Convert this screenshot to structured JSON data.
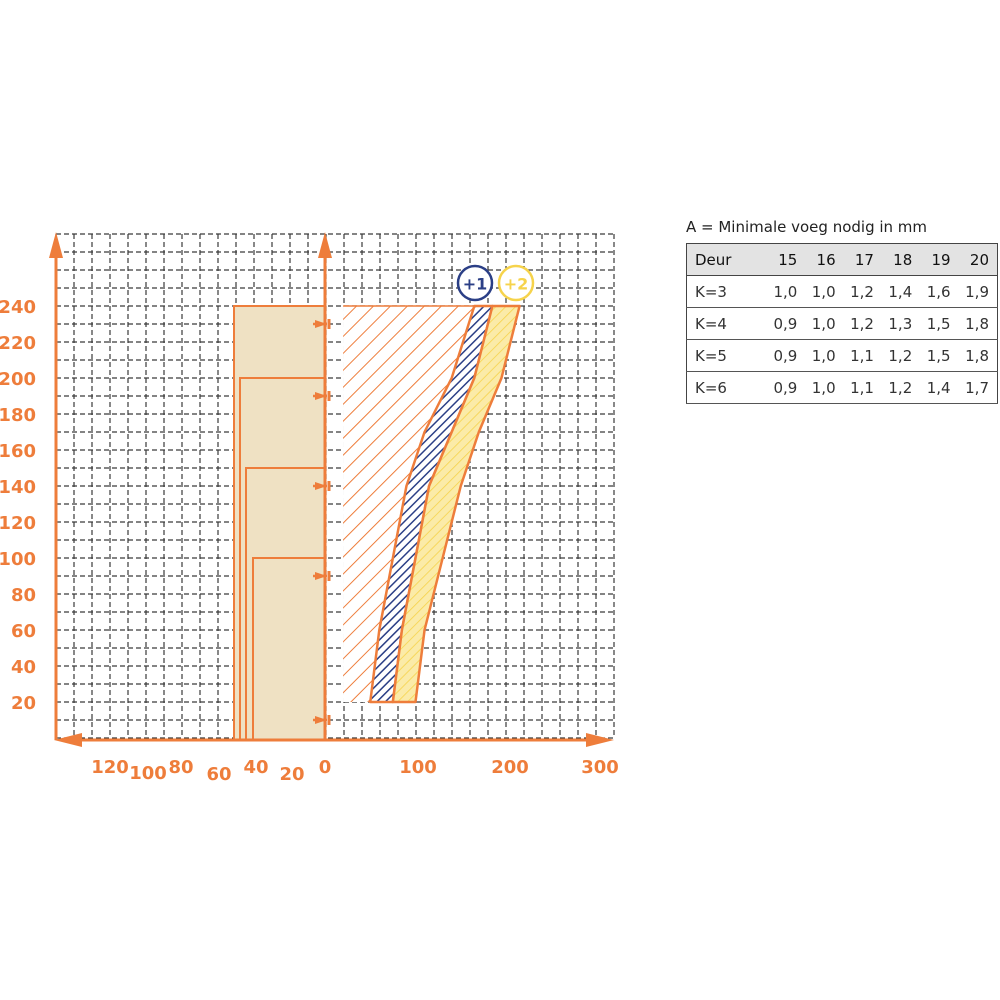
{
  "colors": {
    "orange": "#EE7D3B",
    "blue": "#2B3F86",
    "yellow": "#F6D34B",
    "beige": "#EFE1C3",
    "grid": "#3a3a3a"
  },
  "chart_data": {
    "type": "area",
    "y_axis": {
      "ticks": [
        "20",
        "40",
        "60",
        "80",
        "100",
        "120",
        "140",
        "160",
        "180",
        "200",
        "220",
        "240"
      ],
      "range": [
        0,
        270
      ]
    },
    "x_axis_left": {
      "ticks": [
        "120",
        "100",
        "80",
        "60",
        "40",
        "20",
        "0"
      ],
      "range": [
        0,
        150
      ]
    },
    "x_axis_right": {
      "ticks": [
        "100",
        "200",
        "300"
      ],
      "range": [
        0,
        320
      ]
    },
    "series": [
      {
        "name": "+1",
        "color": "blue",
        "left_edge": [
          [
            50,
            20
          ],
          [
            60,
            60
          ],
          [
            75,
            100
          ],
          [
            90,
            140
          ],
          [
            110,
            170
          ],
          [
            140,
            200
          ],
          [
            165,
            240
          ]
        ],
        "right_edge": [
          [
            75,
            20
          ],
          [
            85,
            60
          ],
          [
            100,
            100
          ],
          [
            115,
            140
          ],
          [
            140,
            170
          ],
          [
            165,
            200
          ],
          [
            185,
            240
          ]
        ]
      },
      {
        "name": "+2",
        "color": "yellow",
        "left_edge": [
          [
            75,
            20
          ],
          [
            85,
            60
          ],
          [
            100,
            100
          ],
          [
            115,
            140
          ],
          [
            140,
            170
          ],
          [
            165,
            200
          ],
          [
            185,
            240
          ]
        ],
        "right_edge": [
          [
            100,
            20
          ],
          [
            110,
            60
          ],
          [
            130,
            100
          ],
          [
            150,
            140
          ],
          [
            170,
            170
          ],
          [
            195,
            200
          ],
          [
            215,
            240
          ]
        ]
      }
    ],
    "hatched_region": {
      "x": [
        20,
        165
      ],
      "y": [
        20,
        240
      ]
    },
    "door_heights": [
      100,
      150,
      200,
      240
    ],
    "door_thickness_markers": [
      45,
      40,
      38,
      35
    ],
    "arrow_markers_y": [
      10,
      90,
      140,
      190,
      230
    ]
  },
  "table": {
    "title": "A = Minimale voeg nodig in mm",
    "header": [
      "Deur",
      "15",
      "16",
      "17",
      "18",
      "19",
      "20"
    ],
    "rows": [
      [
        "K=3",
        "1,0",
        "1,0",
        "1,2",
        "1,4",
        "1,6",
        "1,9"
      ],
      [
        "K=4",
        "0,9",
        "1,0",
        "1,2",
        "1,3",
        "1,5",
        "1,8"
      ],
      [
        "K=5",
        "0,9",
        "1,0",
        "1,1",
        "1,2",
        "1,5",
        "1,8"
      ],
      [
        "K=6",
        "0,9",
        "1,0",
        "1,1",
        "1,2",
        "1,4",
        "1,7"
      ]
    ]
  }
}
